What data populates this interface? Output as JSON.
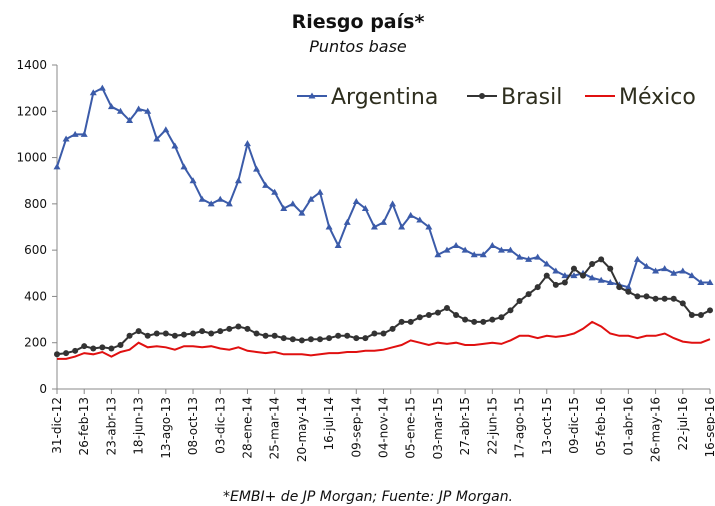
{
  "chart_data": {
    "type": "line",
    "title": "Riesgo país*",
    "subtitle": "Puntos base",
    "note": "*EMBI+ de JP Morgan; Fuente: JP Morgan.",
    "categories": [
      "31-dic-12",
      null,
      null,
      "26-feb-13",
      null,
      null,
      "23-abr-13",
      null,
      null,
      "18-jun-13",
      null,
      null,
      "13-ago-13",
      null,
      null,
      "08-oct-13",
      null,
      null,
      "03-dic-13",
      null,
      null,
      "28-ene-14",
      null,
      null,
      "25-mar-14",
      null,
      null,
      "20-may-14",
      null,
      null,
      "16-jul-14",
      null,
      null,
      "09-sep-14",
      null,
      null,
      "04-nov-14",
      null,
      null,
      "05-ene-15",
      null,
      null,
      "03-mar-15",
      null,
      null,
      "27-abr-15",
      null,
      null,
      "22-jun-15",
      null,
      null,
      "17-ago-15",
      null,
      null,
      "13-oct-15",
      null,
      null,
      "09-dic-15",
      null,
      null,
      "05-feb-16",
      null,
      null,
      "01-abr-16",
      null,
      null,
      "26-may-16",
      null,
      null,
      "22-jul-16",
      null,
      null,
      "16-sep-16"
    ],
    "series": [
      {
        "name": "Argentina",
        "color": "#3b5ba9",
        "marker": "triangle",
        "values": [
          960,
          1080,
          1100,
          1100,
          1280,
          1300,
          1220,
          1200,
          1160,
          1210,
          1200,
          1080,
          1120,
          1050,
          960,
          900,
          820,
          800,
          820,
          800,
          900,
          1060,
          950,
          880,
          850,
          780,
          800,
          760,
          820,
          850,
          700,
          620,
          720,
          810,
          780,
          700,
          720,
          800,
          700,
          750,
          730,
          700,
          580,
          600,
          620,
          600,
          580,
          580,
          620,
          600,
          600,
          570,
          560,
          570,
          540,
          510,
          490,
          490,
          500,
          480,
          470,
          460,
          450,
          440,
          560,
          530,
          510,
          520,
          500,
          510,
          490,
          460,
          460
        ]
      },
      {
        "name": "Brasil",
        "color": "#333333",
        "marker": "circle",
        "values": [
          150,
          155,
          165,
          185,
          175,
          180,
          175,
          190,
          230,
          250,
          230,
          240,
          240,
          230,
          235,
          240,
          250,
          240,
          250,
          260,
          270,
          260,
          240,
          230,
          230,
          220,
          215,
          210,
          215,
          215,
          220,
          230,
          230,
          220,
          220,
          240,
          240,
          260,
          290,
          290,
          310,
          320,
          330,
          350,
          320,
          300,
          290,
          290,
          300,
          310,
          340,
          380,
          410,
          440,
          490,
          450,
          460,
          520,
          490,
          540,
          560,
          520,
          440,
          420,
          400,
          400,
          390,
          390,
          390,
          370,
          320,
          320,
          340
        ]
      },
      {
        "name": "México",
        "color": "#e01010",
        "marker": null,
        "values": [
          130,
          130,
          140,
          155,
          150,
          160,
          140,
          160,
          170,
          200,
          180,
          185,
          180,
          170,
          185,
          185,
          180,
          185,
          175,
          170,
          180,
          165,
          160,
          155,
          160,
          150,
          150,
          150,
          145,
          150,
          155,
          155,
          160,
          160,
          165,
          165,
          170,
          180,
          190,
          210,
          200,
          190,
          200,
          195,
          200,
          190,
          190,
          195,
          200,
          195,
          210,
          230,
          230,
          220,
          230,
          225,
          230,
          240,
          260,
          290,
          270,
          240,
          230,
          230,
          220,
          230,
          230,
          240,
          220,
          205,
          200,
          200,
          215
        ]
      }
    ],
    "ylim": [
      0,
      1400
    ],
    "yticks": [
      0,
      200,
      400,
      600,
      800,
      1000,
      1200,
      1400
    ],
    "grid": false,
    "legend": "top-right"
  }
}
